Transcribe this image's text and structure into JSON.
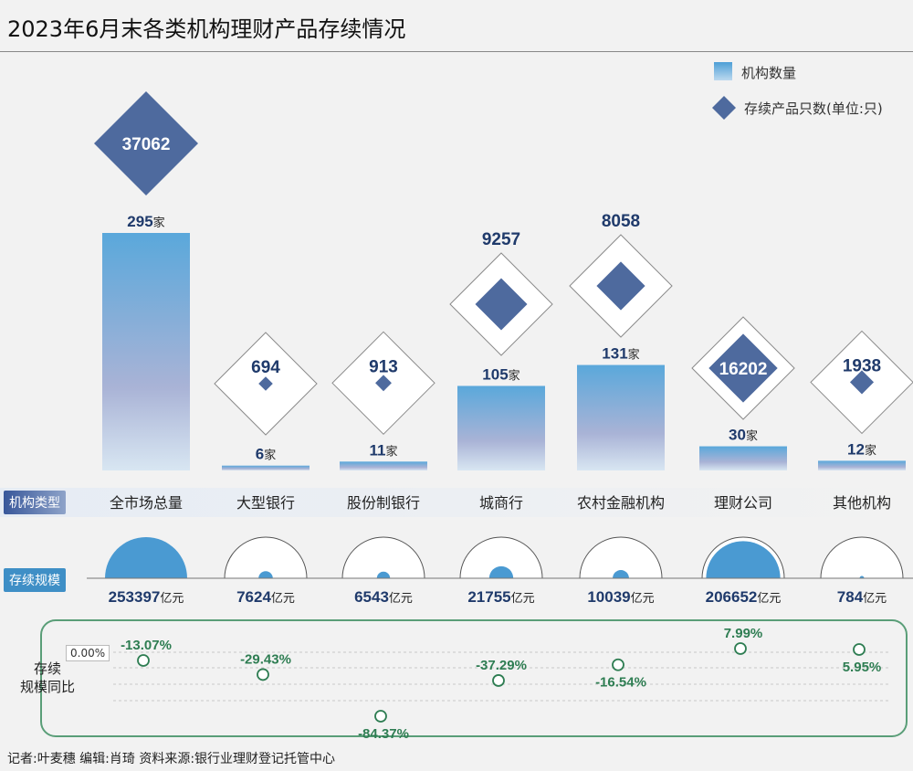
{
  "title": "2023年6月末各类机构理财产品存续情况",
  "legend": {
    "institutions": "机构数量",
    "products": "存续产品只数(单位:只)"
  },
  "row_labels": {
    "type": "机构类型",
    "scale": "存续规模",
    "yoy": "存续\n规模同比",
    "zero": "0.00%"
  },
  "units": {
    "count": "家",
    "scale": "亿元"
  },
  "credit": "记者:叶麦穗   编辑:肖琦   资料来源:银行业理财登记托管中心",
  "colors": {
    "diamond": "#4e6a9e",
    "bar_top": "#4d9fd6",
    "bar_bottom": "#d4e4f2",
    "scale": "#4a9ad2",
    "green": "#2e7d52"
  },
  "chart_data": {
    "type": "bar",
    "categories": [
      "全市场总量",
      "大型银行",
      "股份制银行",
      "城商行",
      "农村金融机构",
      "理财公司",
      "其他机构"
    ],
    "series": [
      {
        "name": "机构数量",
        "unit": "家",
        "values": [
          295,
          6,
          11,
          105,
          131,
          30,
          12
        ]
      },
      {
        "name": "存续产品只数(单位:只)",
        "values": [
          37062,
          694,
          913,
          9257,
          8058,
          16202,
          1938
        ]
      },
      {
        "name": "存续规模",
        "unit": "亿元",
        "values": [
          253397,
          7624,
          6543,
          21755,
          10039,
          206652,
          784
        ]
      },
      {
        "name": "存续规模同比",
        "unit": "%",
        "values": [
          -13.07,
          -29.43,
          -84.37,
          -37.29,
          -16.54,
          7.99,
          5.95
        ]
      }
    ]
  }
}
